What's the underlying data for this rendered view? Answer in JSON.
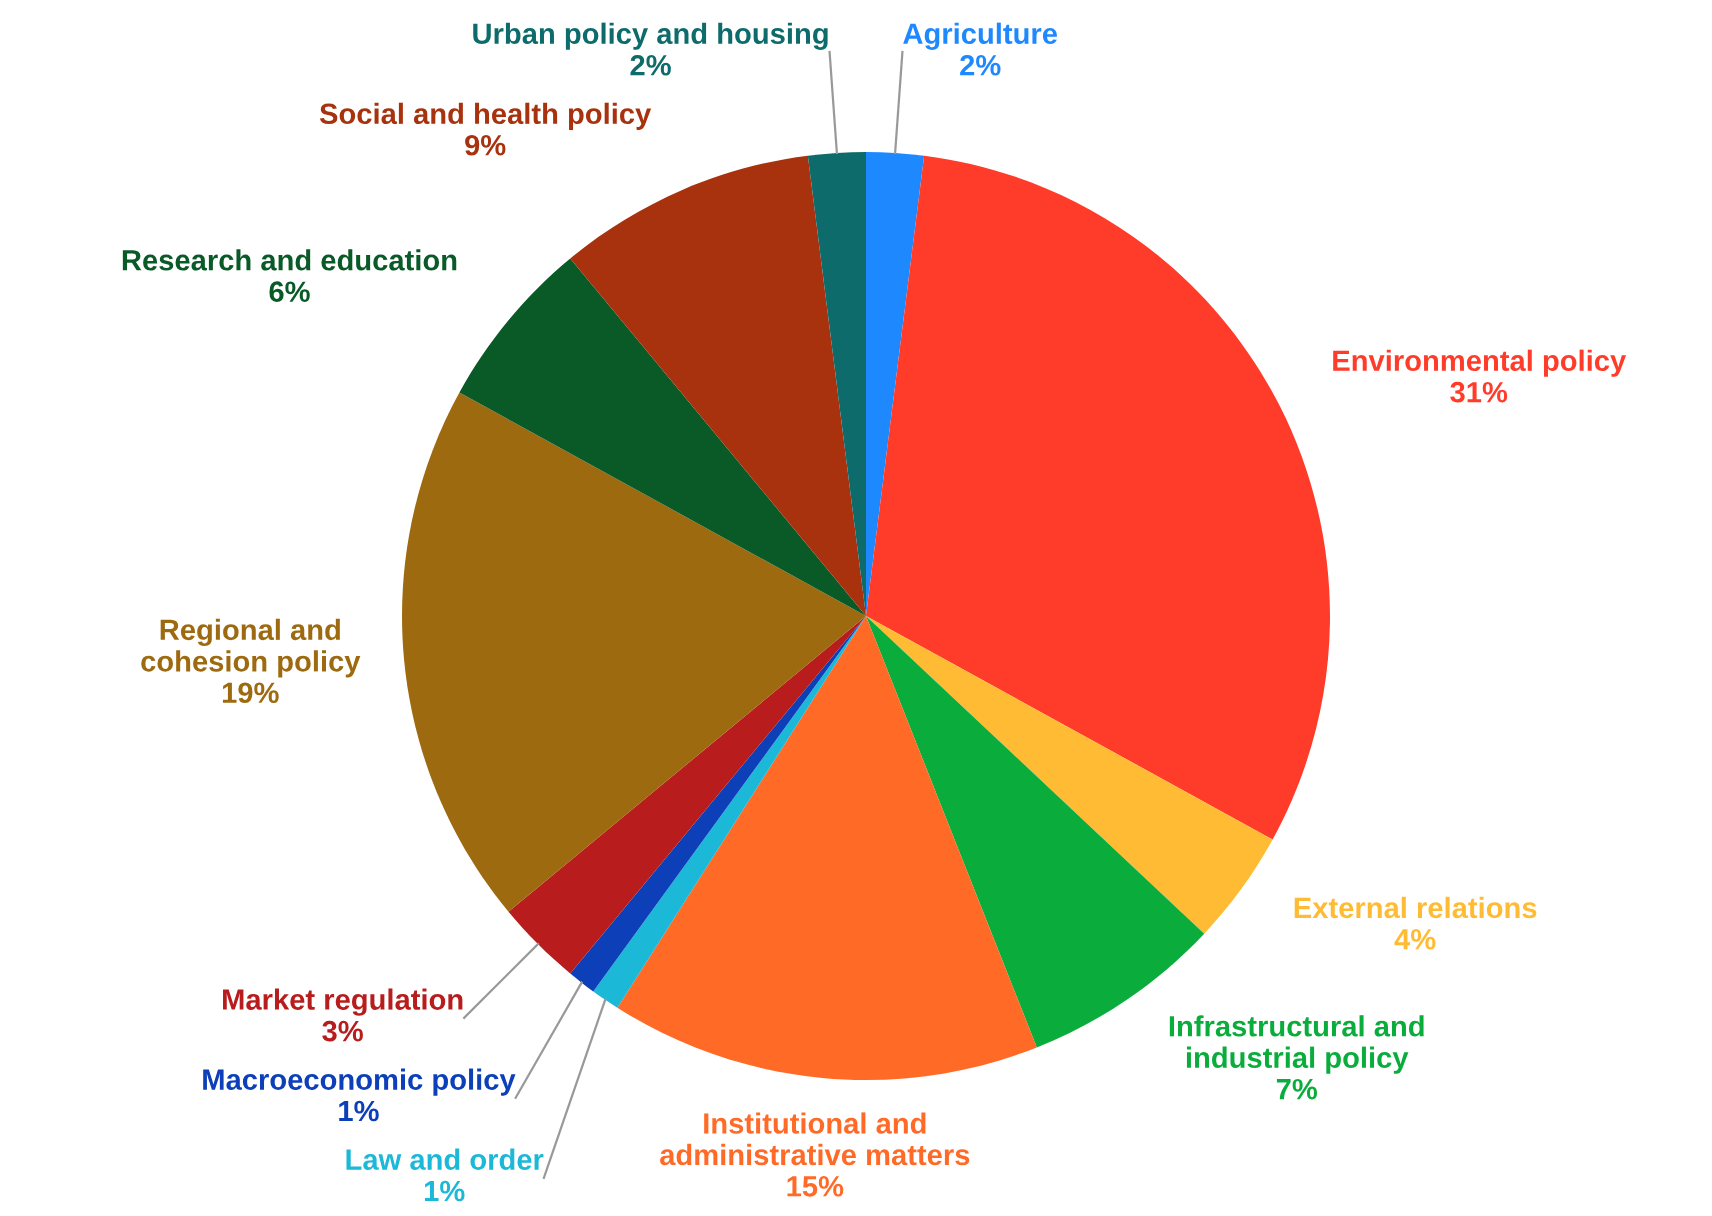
{
  "chart_data": {
    "type": "pie",
    "categories": [
      "Agriculture",
      "Environmental policy",
      "External relations",
      "Infrastructural and industrial policy",
      "Institutional and administrative matters",
      "Law and order",
      "Macroeconomic policy",
      "Market regulation",
      "Regional and cohesion policy",
      "Research and education",
      "Social and health policy",
      "Urban policy and housing"
    ],
    "values": [
      2,
      31,
      4,
      7,
      15,
      1,
      1,
      3,
      19,
      6,
      9,
      2
    ],
    "value_labels": [
      "2%",
      "31%",
      "4%",
      "7%",
      "15%",
      "1%",
      "1%",
      "3%",
      "19%",
      "6%",
      "9%",
      "2%"
    ],
    "colors": [
      "#1e88ff",
      "#ff3b2a",
      "#ffbb33",
      "#0aad3c",
      "#ff6a26",
      "#1bb8d8",
      "#0c3fb8",
      "#b81c1c",
      "#9e6a10",
      "#0a5a28",
      "#a8320e",
      "#0e6b6b"
    ]
  }
}
